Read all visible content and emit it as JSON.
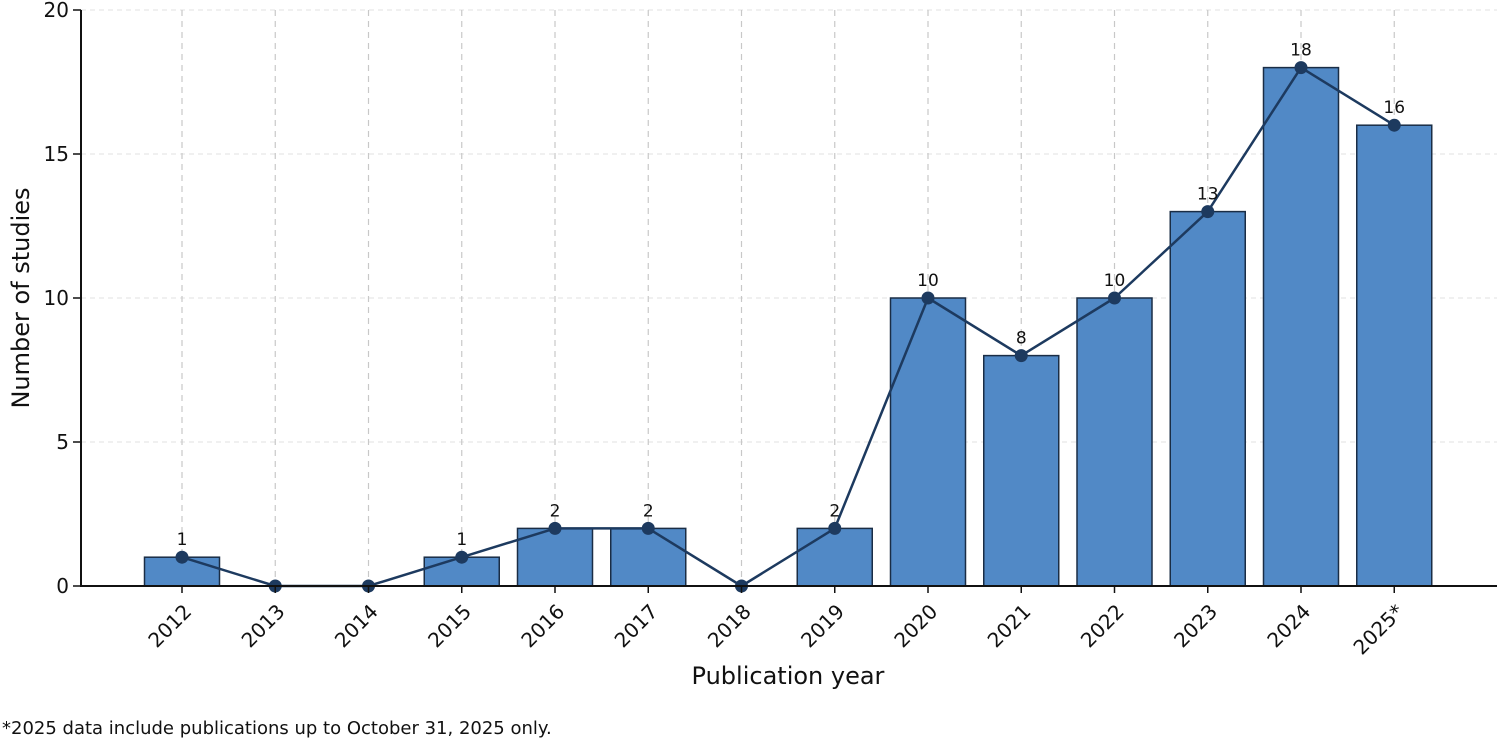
{
  "chart_data": {
    "type": "bar",
    "categories": [
      "2012",
      "2013",
      "2014",
      "2015",
      "2016",
      "2017",
      "2018",
      "2019",
      "2020",
      "2021",
      "2022",
      "2023",
      "2024",
      "2025*"
    ],
    "values": [
      1,
      0,
      0,
      1,
      2,
      2,
      0,
      2,
      10,
      8,
      10,
      13,
      18,
      16
    ],
    "overlay": "line with markers through bar values",
    "data_labels": [
      "1",
      "",
      "",
      "1",
      "2",
      "2",
      "",
      "2",
      "10",
      "8",
      "10",
      "13",
      "18",
      "16"
    ],
    "xlabel": "Publication year",
    "ylabel": "Number of studies",
    "ylim": [
      0,
      20
    ],
    "yticks": [
      0,
      5,
      10,
      15,
      20
    ],
    "grid": "dashed vertical at categories, dashed horizontal at y ticks",
    "colors": {
      "bar_fill": "#5189c6",
      "bar_edge": "#1a2d45",
      "line": "#1d3a5f",
      "marker": "#1d3a5f",
      "grid": "#c8c8c8",
      "axis": "#111111"
    }
  },
  "footnote": "*2025 data include publications up to October 31, 2025 only."
}
